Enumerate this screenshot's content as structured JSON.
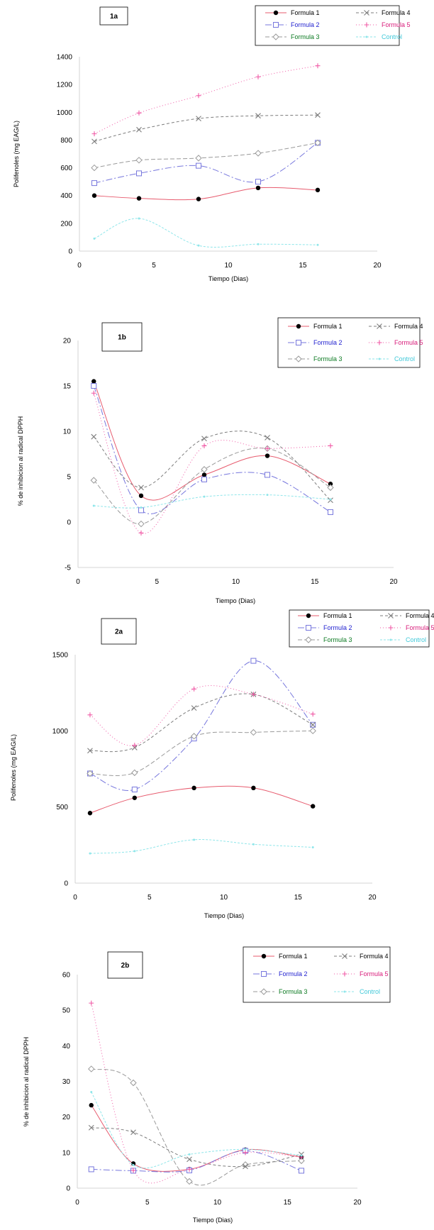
{
  "chart_data": [
    {
      "panel": "1a",
      "type": "line",
      "xlabel": "Tiempo (Dias)",
      "ylabel": "Polifenoles (mg EAG/L)",
      "xlim": [
        0,
        20
      ],
      "ylim": [
        0,
        1400
      ],
      "xticks": [
        0,
        5,
        10,
        15,
        20
      ],
      "yticks": [
        0,
        200,
        400,
        600,
        800,
        1000,
        1200,
        1400
      ],
      "x": [
        1,
        4,
        8,
        12,
        16
      ],
      "series": [
        {
          "name": "Formula 1",
          "values": [
            400,
            380,
            375,
            455,
            440
          ]
        },
        {
          "name": "Formula 2",
          "values": [
            490,
            560,
            615,
            500,
            780
          ]
        },
        {
          "name": "Formula 3",
          "values": [
            600,
            655,
            670,
            705,
            780
          ]
        },
        {
          "name": "Formula 4",
          "values": [
            790,
            875,
            955,
            975,
            980
          ]
        },
        {
          "name": "Formula 5",
          "values": [
            845,
            995,
            1120,
            1255,
            1335
          ]
        },
        {
          "name": "Control",
          "values": [
            90,
            235,
            40,
            50,
            45
          ]
        }
      ]
    },
    {
      "panel": "1b",
      "type": "line",
      "xlabel": "Tiempo (Dias)",
      "ylabel": "% de inhibicion al radical DPPH",
      "xlim": [
        0,
        20
      ],
      "ylim": [
        -5,
        20
      ],
      "xticks": [
        0,
        5,
        10,
        15,
        20
      ],
      "yticks": [
        -5,
        0,
        5,
        10,
        15,
        20
      ],
      "x": [
        1,
        4,
        8,
        12,
        16
      ],
      "series": [
        {
          "name": "Formula 1",
          "values": [
            15.5,
            2.9,
            5.2,
            7.3,
            4.2
          ]
        },
        {
          "name": "Formula 2",
          "values": [
            15.0,
            1.3,
            4.7,
            5.2,
            1.1
          ]
        },
        {
          "name": "Formula 3",
          "values": [
            4.6,
            -0.2,
            5.8,
            8.1,
            3.8
          ]
        },
        {
          "name": "Formula 4",
          "values": [
            9.4,
            3.8,
            9.2,
            9.3,
            2.4
          ]
        },
        {
          "name": "Formula 5",
          "values": [
            14.2,
            -1.2,
            8.4,
            8.1,
            8.4
          ]
        },
        {
          "name": "Control",
          "values": [
            1.8,
            1.6,
            2.8,
            3.0,
            2.5
          ]
        }
      ]
    },
    {
      "panel": "2a",
      "type": "line",
      "xlabel": "Tiempo (Dias)",
      "ylabel": "Polifenoles (mg EAG/L)",
      "xlim": [
        0,
        20
      ],
      "ylim": [
        0,
        1500
      ],
      "xticks": [
        0,
        5,
        10,
        15,
        20
      ],
      "yticks": [
        0,
        500,
        1000,
        1500
      ],
      "x": [
        1,
        4,
        8,
        12,
        16
      ],
      "series": [
        {
          "name": "Formula 1",
          "values": [
            460,
            560,
            625,
            625,
            505
          ]
        },
        {
          "name": "Formula 2",
          "values": [
            720,
            615,
            950,
            1460,
            1040
          ]
        },
        {
          "name": "Formula 3",
          "values": [
            720,
            725,
            965,
            990,
            1000
          ]
        },
        {
          "name": "Formula 4",
          "values": [
            870,
            890,
            1150,
            1240,
            1040
          ]
        },
        {
          "name": "Formula 5",
          "values": [
            1105,
            905,
            1275,
            1240,
            1110
          ]
        },
        {
          "name": "Control",
          "values": [
            195,
            210,
            285,
            255,
            235
          ]
        }
      ]
    },
    {
      "panel": "2b",
      "type": "line",
      "xlabel": "Tiempo (Dias)",
      "ylabel": "% de inhibicion al radical DPPH",
      "xlim": [
        0,
        20
      ],
      "ylim": [
        0,
        60
      ],
      "xticks": [
        0,
        5,
        10,
        15,
        20
      ],
      "yticks": [
        0,
        10,
        20,
        30,
        40,
        50,
        60
      ],
      "x": [
        1,
        4,
        8,
        12,
        16
      ],
      "series": [
        {
          "name": "Formula 1",
          "values": [
            23.3,
            6.9,
            5.3,
            10.8,
            8.7
          ]
        },
        {
          "name": "Formula 2",
          "values": [
            5.3,
            4.9,
            5.0,
            10.5,
            4.9
          ]
        },
        {
          "name": "Formula 3",
          "values": [
            33.5,
            29.6,
            1.9,
            6.6,
            7.7
          ]
        },
        {
          "name": "Formula 4",
          "values": [
            17.0,
            15.7,
            8.1,
            6.1,
            9.5
          ]
        },
        {
          "name": "Formula 5",
          "values": [
            52.0,
            5.0,
            5.3,
            10.0,
            8.7
          ]
        },
        {
          "name": "Control",
          "values": [
            27.0,
            6.5,
            9.5,
            10.9,
            9.2
          ]
        }
      ]
    }
  ],
  "legend_styles": [
    {
      "name": "Formula 1",
      "color": "#e75b6e",
      "text_color": "#000000",
      "marker": "dot",
      "dash": ""
    },
    {
      "name": "Formula 2",
      "color": "#7777dd",
      "text_color": "#1e1ecf",
      "marker": "square",
      "dash": "9 3 2 3"
    },
    {
      "name": "Formula 3",
      "color": "#9a9a9a",
      "text_color": "#0c7a22",
      "marker": "diamond",
      "dash": "6 3"
    },
    {
      "name": "Formula 4",
      "color": "#7d7d7d",
      "text_color": "#000000",
      "marker": "cross",
      "dash": "4 3"
    },
    {
      "name": "Formula 5",
      "color": "#f05aa6",
      "text_color": "#d81b7a",
      "marker": "plus",
      "dash": "1 3"
    },
    {
      "name": "Control",
      "color": "#8fe6ea",
      "text_color": "#41c9d9",
      "marker": "none",
      "dash": "3 2"
    }
  ]
}
